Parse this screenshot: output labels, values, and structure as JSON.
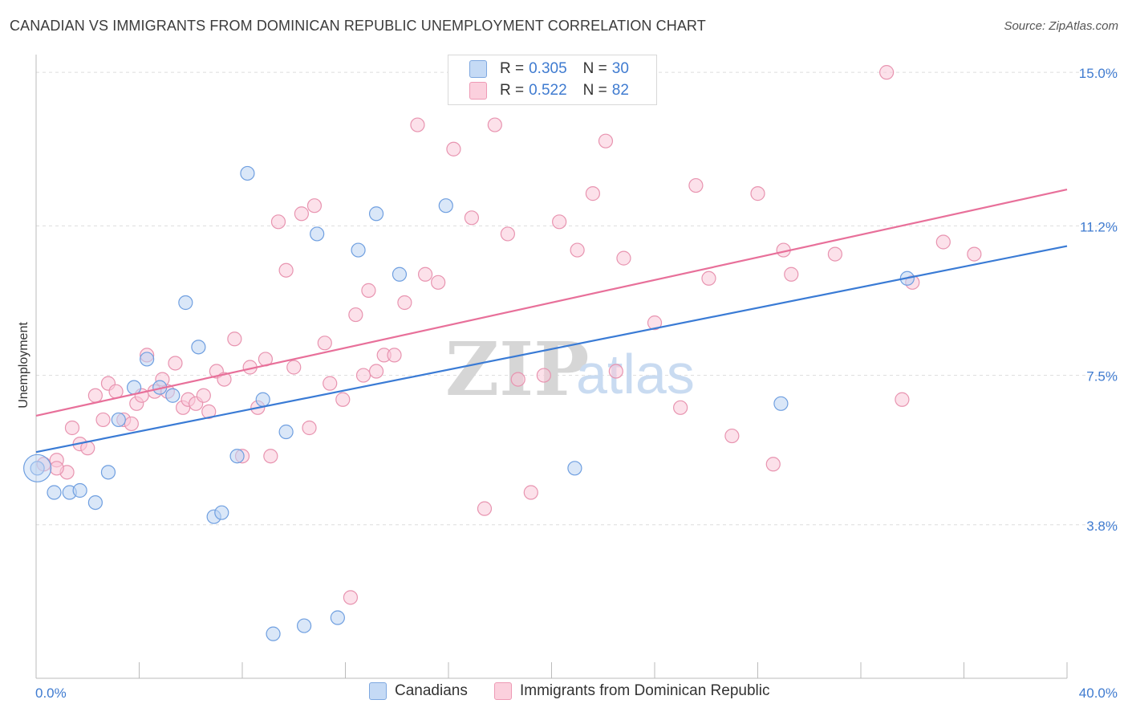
{
  "title": "CANADIAN VS IMMIGRANTS FROM DOMINICAN REPUBLIC UNEMPLOYMENT CORRELATION CHART",
  "source": "Source: ZipAtlas.com",
  "watermark": {
    "zip": "ZIP",
    "atlas": "atlas"
  },
  "legend": {
    "rows": [
      {
        "r_label": "R =",
        "r_value": "0.305",
        "n_label": "N =",
        "n_value": "30",
        "color": "#a9c8f0"
      },
      {
        "r_label": "R =",
        "r_value": "0.522",
        "n_label": "N =",
        "n_value": "82",
        "color": "#f6b8cb"
      }
    ]
  },
  "bottom_legend": [
    {
      "label": "Canadians",
      "color": "#a9c8f0"
    },
    {
      "label": "Immigrants from Dominican Republic",
      "color": "#f6b8cb"
    }
  ],
  "chart_data": {
    "type": "scatter",
    "title": "CANADIAN VS IMMIGRANTS FROM DOMINICAN REPUBLIC UNEMPLOYMENT CORRELATION CHART",
    "xlabel": "",
    "ylabel": "Unemployment",
    "xlim": [
      0,
      40
    ],
    "ylim": [
      0,
      15.4
    ],
    "x_tick_labels": [
      "0.0%",
      "40.0%"
    ],
    "y_ticks": [
      3.8,
      7.5,
      11.2,
      15.0
    ],
    "y_tick_labels": [
      "3.8%",
      "7.5%",
      "11.2%",
      "15.0%"
    ],
    "grid": "horizontal dashed",
    "legend_position": "top-center",
    "colors": {
      "canadians": "#3a7bd5",
      "dominican": "#e8709a"
    },
    "series": [
      {
        "name": "Canadians",
        "trend": {
          "x": [
            0,
            40
          ],
          "y": [
            5.6,
            10.7
          ]
        },
        "points": [
          [
            0.05,
            5.2
          ],
          [
            0.7,
            4.6
          ],
          [
            1.3,
            4.6
          ],
          [
            1.7,
            4.65
          ],
          [
            2.3,
            4.35
          ],
          [
            2.8,
            5.1
          ],
          [
            3.2,
            6.4
          ],
          [
            3.8,
            7.2
          ],
          [
            4.3,
            7.9
          ],
          [
            4.8,
            7.2
          ],
          [
            5.3,
            7.0
          ],
          [
            5.8,
            9.3
          ],
          [
            6.3,
            8.2
          ],
          [
            6.9,
            4.0
          ],
          [
            7.2,
            4.1
          ],
          [
            7.8,
            5.5
          ],
          [
            8.2,
            12.5
          ],
          [
            8.8,
            6.9
          ],
          [
            9.2,
            1.1
          ],
          [
            9.7,
            6.1
          ],
          [
            10.4,
            1.3
          ],
          [
            10.9,
            11.0
          ],
          [
            11.7,
            1.5
          ],
          [
            12.5,
            10.6
          ],
          [
            13.2,
            11.5
          ],
          [
            14.1,
            10.0
          ],
          [
            15.9,
            11.7
          ],
          [
            20.9,
            5.2
          ],
          [
            28.9,
            6.8
          ],
          [
            33.8,
            9.9
          ]
        ]
      },
      {
        "name": "Immigrants from Dominican Republic",
        "trend": {
          "x": [
            0,
            40
          ],
          "y": [
            6.5,
            12.1
          ]
        },
        "points": [
          [
            0.3,
            5.3
          ],
          [
            0.8,
            5.4
          ],
          [
            1.2,
            5.1
          ],
          [
            1.4,
            6.2
          ],
          [
            1.7,
            5.8
          ],
          [
            2.0,
            5.7
          ],
          [
            2.3,
            7.0
          ],
          [
            2.6,
            6.4
          ],
          [
            2.8,
            7.3
          ],
          [
            3.1,
            7.1
          ],
          [
            3.4,
            6.4
          ],
          [
            3.7,
            6.3
          ],
          [
            3.9,
            6.8
          ],
          [
            4.1,
            7.0
          ],
          [
            4.3,
            8.0
          ],
          [
            4.6,
            7.1
          ],
          [
            4.9,
            7.4
          ],
          [
            5.1,
            7.1
          ],
          [
            5.4,
            7.8
          ],
          [
            5.7,
            6.7
          ],
          [
            5.9,
            6.9
          ],
          [
            6.2,
            6.8
          ],
          [
            6.5,
            7.0
          ],
          [
            6.7,
            6.6
          ],
          [
            7.0,
            7.6
          ],
          [
            7.3,
            7.4
          ],
          [
            7.7,
            8.4
          ],
          [
            8.0,
            5.5
          ],
          [
            8.3,
            7.7
          ],
          [
            8.6,
            6.7
          ],
          [
            8.9,
            7.9
          ],
          [
            9.1,
            5.5
          ],
          [
            9.4,
            11.3
          ],
          [
            9.7,
            10.1
          ],
          [
            10.0,
            7.7
          ],
          [
            10.3,
            11.5
          ],
          [
            10.6,
            6.2
          ],
          [
            10.8,
            11.7
          ],
          [
            11.2,
            8.3
          ],
          [
            11.4,
            7.3
          ],
          [
            11.9,
            6.9
          ],
          [
            12.2,
            2.0
          ],
          [
            12.4,
            9.0
          ],
          [
            12.7,
            7.5
          ],
          [
            12.9,
            9.6
          ],
          [
            13.2,
            7.6
          ],
          [
            13.5,
            8.0
          ],
          [
            13.9,
            8.0
          ],
          [
            14.3,
            9.3
          ],
          [
            14.8,
            13.7
          ],
          [
            15.1,
            10.0
          ],
          [
            15.6,
            9.8
          ],
          [
            16.2,
            13.1
          ],
          [
            16.9,
            11.4
          ],
          [
            17.4,
            4.2
          ],
          [
            17.8,
            13.7
          ],
          [
            18.3,
            11.0
          ],
          [
            18.7,
            7.4
          ],
          [
            19.2,
            4.6
          ],
          [
            19.7,
            7.5
          ],
          [
            20.3,
            11.3
          ],
          [
            21.0,
            10.6
          ],
          [
            21.6,
            12.0
          ],
          [
            22.1,
            13.3
          ],
          [
            22.8,
            10.4
          ],
          [
            24.0,
            8.8
          ],
          [
            25.0,
            6.7
          ],
          [
            25.6,
            12.2
          ],
          [
            26.1,
            9.9
          ],
          [
            27.0,
            6.0
          ],
          [
            28.0,
            12.0
          ],
          [
            28.6,
            5.3
          ],
          [
            29.0,
            10.6
          ],
          [
            29.3,
            10.0
          ],
          [
            31.0,
            10.5
          ],
          [
            33.0,
            15.0
          ],
          [
            33.6,
            6.9
          ],
          [
            34.0,
            9.8
          ],
          [
            35.2,
            10.8
          ],
          [
            36.4,
            10.5
          ],
          [
            0.8,
            5.2
          ],
          [
            22.5,
            7.6
          ]
        ]
      }
    ]
  }
}
